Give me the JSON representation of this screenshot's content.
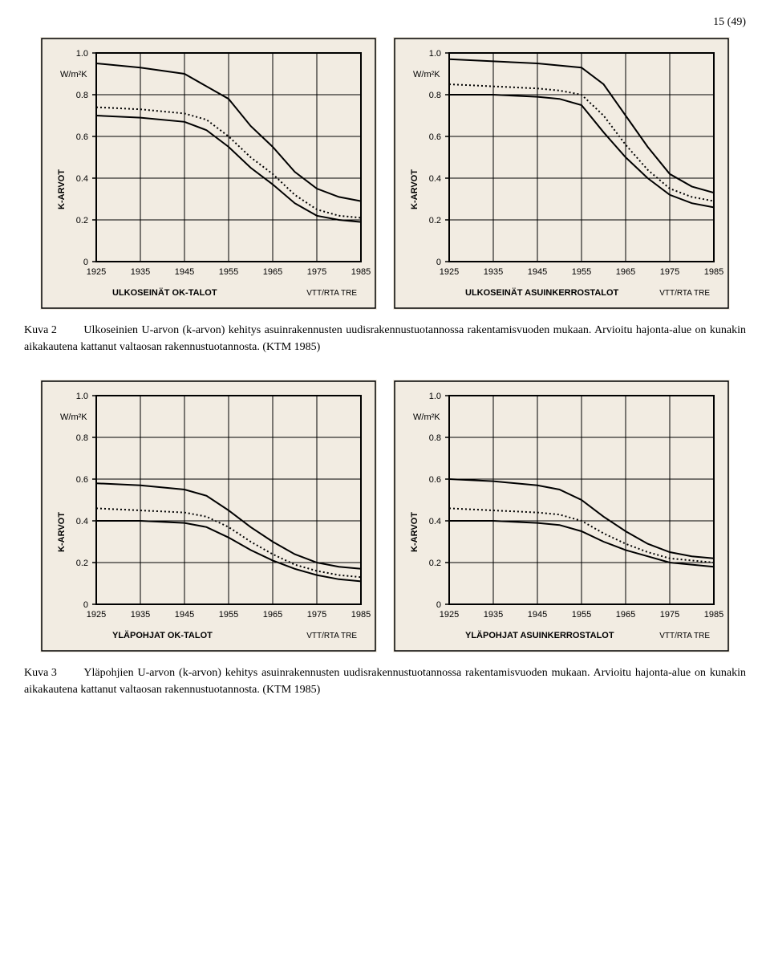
{
  "page_number": "15 (49)",
  "caption1": {
    "label": "Kuva 2",
    "text": "Ulkoseinien U-arvon (k-arvon) kehitys asuinrakennusten uudisrakennustuotannossa rakentamisvuoden mukaan. Arvioitu hajonta-alue on kunakin aikakautena kattanut valtaosan rakennustuotannosta. (KTM 1985)"
  },
  "caption2": {
    "label": "Kuva 3",
    "text": "Yläpohjien U-arvon (k-arvon) kehitys asuinrakennusten uudisrakennustuotannossa rakentamisvuoden mukaan. Arvioitu hajonta-alue on kunakin aikakautena kattanut valtaosan rakennustuotannosta. (KTM 1985)"
  },
  "charts": {
    "common": {
      "x_ticks": [
        1925,
        1935,
        1945,
        1955,
        1965,
        1975,
        1985
      ],
      "y_ticks": [
        0,
        0.2,
        0.4,
        0.6,
        0.8,
        1.0
      ],
      "y_unit": "W/m²K",
      "y_label": "K-ARVOT",
      "subtitle": "VTT/RTA TRE",
      "xlim": [
        1925,
        1985
      ],
      "ylim": [
        0,
        1.0
      ],
      "bg": "#f2ece2",
      "line_color": "#000000",
      "tick_font": 11,
      "title_font": 11
    },
    "chart_a": {
      "title": "ULKOSEINÄT OK-TALOT",
      "upper": [
        [
          1925,
          0.95
        ],
        [
          1935,
          0.93
        ],
        [
          1945,
          0.9
        ],
        [
          1955,
          0.78
        ],
        [
          1960,
          0.65
        ],
        [
          1965,
          0.55
        ],
        [
          1970,
          0.43
        ],
        [
          1975,
          0.35
        ],
        [
          1980,
          0.31
        ],
        [
          1985,
          0.29
        ]
      ],
      "mid": [
        [
          1925,
          0.74
        ],
        [
          1935,
          0.73
        ],
        [
          1945,
          0.71
        ],
        [
          1950,
          0.68
        ],
        [
          1955,
          0.6
        ],
        [
          1960,
          0.5
        ],
        [
          1965,
          0.42
        ],
        [
          1970,
          0.32
        ],
        [
          1975,
          0.25
        ],
        [
          1980,
          0.22
        ],
        [
          1985,
          0.21
        ]
      ],
      "lower": [
        [
          1925,
          0.7
        ],
        [
          1935,
          0.69
        ],
        [
          1945,
          0.67
        ],
        [
          1950,
          0.63
        ],
        [
          1955,
          0.55
        ],
        [
          1960,
          0.45
        ],
        [
          1965,
          0.37
        ],
        [
          1970,
          0.28
        ],
        [
          1975,
          0.22
        ],
        [
          1980,
          0.2
        ],
        [
          1985,
          0.19
        ]
      ]
    },
    "chart_b": {
      "title": "ULKOSEINÄT ASUINKERROSTALOT",
      "upper": [
        [
          1925,
          0.97
        ],
        [
          1935,
          0.96
        ],
        [
          1945,
          0.95
        ],
        [
          1955,
          0.93
        ],
        [
          1960,
          0.85
        ],
        [
          1965,
          0.7
        ],
        [
          1970,
          0.55
        ],
        [
          1975,
          0.42
        ],
        [
          1980,
          0.36
        ],
        [
          1985,
          0.33
        ]
      ],
      "mid": [
        [
          1925,
          0.85
        ],
        [
          1935,
          0.84
        ],
        [
          1945,
          0.83
        ],
        [
          1950,
          0.82
        ],
        [
          1955,
          0.8
        ],
        [
          1960,
          0.7
        ],
        [
          1965,
          0.56
        ],
        [
          1970,
          0.44
        ],
        [
          1975,
          0.35
        ],
        [
          1980,
          0.31
        ],
        [
          1985,
          0.29
        ]
      ],
      "lower": [
        [
          1925,
          0.8
        ],
        [
          1935,
          0.8
        ],
        [
          1945,
          0.79
        ],
        [
          1950,
          0.78
        ],
        [
          1955,
          0.75
        ],
        [
          1960,
          0.62
        ],
        [
          1965,
          0.5
        ],
        [
          1970,
          0.4
        ],
        [
          1975,
          0.32
        ],
        [
          1980,
          0.28
        ],
        [
          1985,
          0.26
        ]
      ]
    },
    "chart_c": {
      "title": "YLÄPOHJAT OK-TALOT",
      "upper": [
        [
          1925,
          0.58
        ],
        [
          1935,
          0.57
        ],
        [
          1945,
          0.55
        ],
        [
          1950,
          0.52
        ],
        [
          1955,
          0.45
        ],
        [
          1960,
          0.37
        ],
        [
          1965,
          0.3
        ],
        [
          1970,
          0.24
        ],
        [
          1975,
          0.2
        ],
        [
          1980,
          0.18
        ],
        [
          1985,
          0.17
        ]
      ],
      "mid": [
        [
          1925,
          0.46
        ],
        [
          1935,
          0.45
        ],
        [
          1945,
          0.44
        ],
        [
          1950,
          0.42
        ],
        [
          1955,
          0.37
        ],
        [
          1960,
          0.3
        ],
        [
          1965,
          0.24
        ],
        [
          1970,
          0.19
        ],
        [
          1975,
          0.16
        ],
        [
          1980,
          0.14
        ],
        [
          1985,
          0.13
        ]
      ],
      "lower": [
        [
          1925,
          0.4
        ],
        [
          1935,
          0.4
        ],
        [
          1945,
          0.39
        ],
        [
          1950,
          0.37
        ],
        [
          1955,
          0.32
        ],
        [
          1960,
          0.26
        ],
        [
          1965,
          0.21
        ],
        [
          1970,
          0.17
        ],
        [
          1975,
          0.14
        ],
        [
          1980,
          0.12
        ],
        [
          1985,
          0.11
        ]
      ]
    },
    "chart_d": {
      "title": "YLÄPOHJAT ASUINKERROSTALOT",
      "upper": [
        [
          1925,
          0.6
        ],
        [
          1935,
          0.59
        ],
        [
          1945,
          0.57
        ],
        [
          1950,
          0.55
        ],
        [
          1955,
          0.5
        ],
        [
          1960,
          0.42
        ],
        [
          1965,
          0.35
        ],
        [
          1970,
          0.29
        ],
        [
          1975,
          0.25
        ],
        [
          1980,
          0.23
        ],
        [
          1985,
          0.22
        ]
      ],
      "mid": [
        [
          1925,
          0.46
        ],
        [
          1935,
          0.45
        ],
        [
          1945,
          0.44
        ],
        [
          1950,
          0.43
        ],
        [
          1955,
          0.4
        ],
        [
          1960,
          0.34
        ],
        [
          1965,
          0.29
        ],
        [
          1970,
          0.25
        ],
        [
          1975,
          0.22
        ],
        [
          1980,
          0.21
        ],
        [
          1985,
          0.2
        ]
      ],
      "lower": [
        [
          1925,
          0.4
        ],
        [
          1935,
          0.4
        ],
        [
          1945,
          0.39
        ],
        [
          1950,
          0.38
        ],
        [
          1955,
          0.35
        ],
        [
          1960,
          0.3
        ],
        [
          1965,
          0.26
        ],
        [
          1970,
          0.23
        ],
        [
          1975,
          0.2
        ],
        [
          1980,
          0.19
        ],
        [
          1985,
          0.18
        ]
      ]
    }
  }
}
